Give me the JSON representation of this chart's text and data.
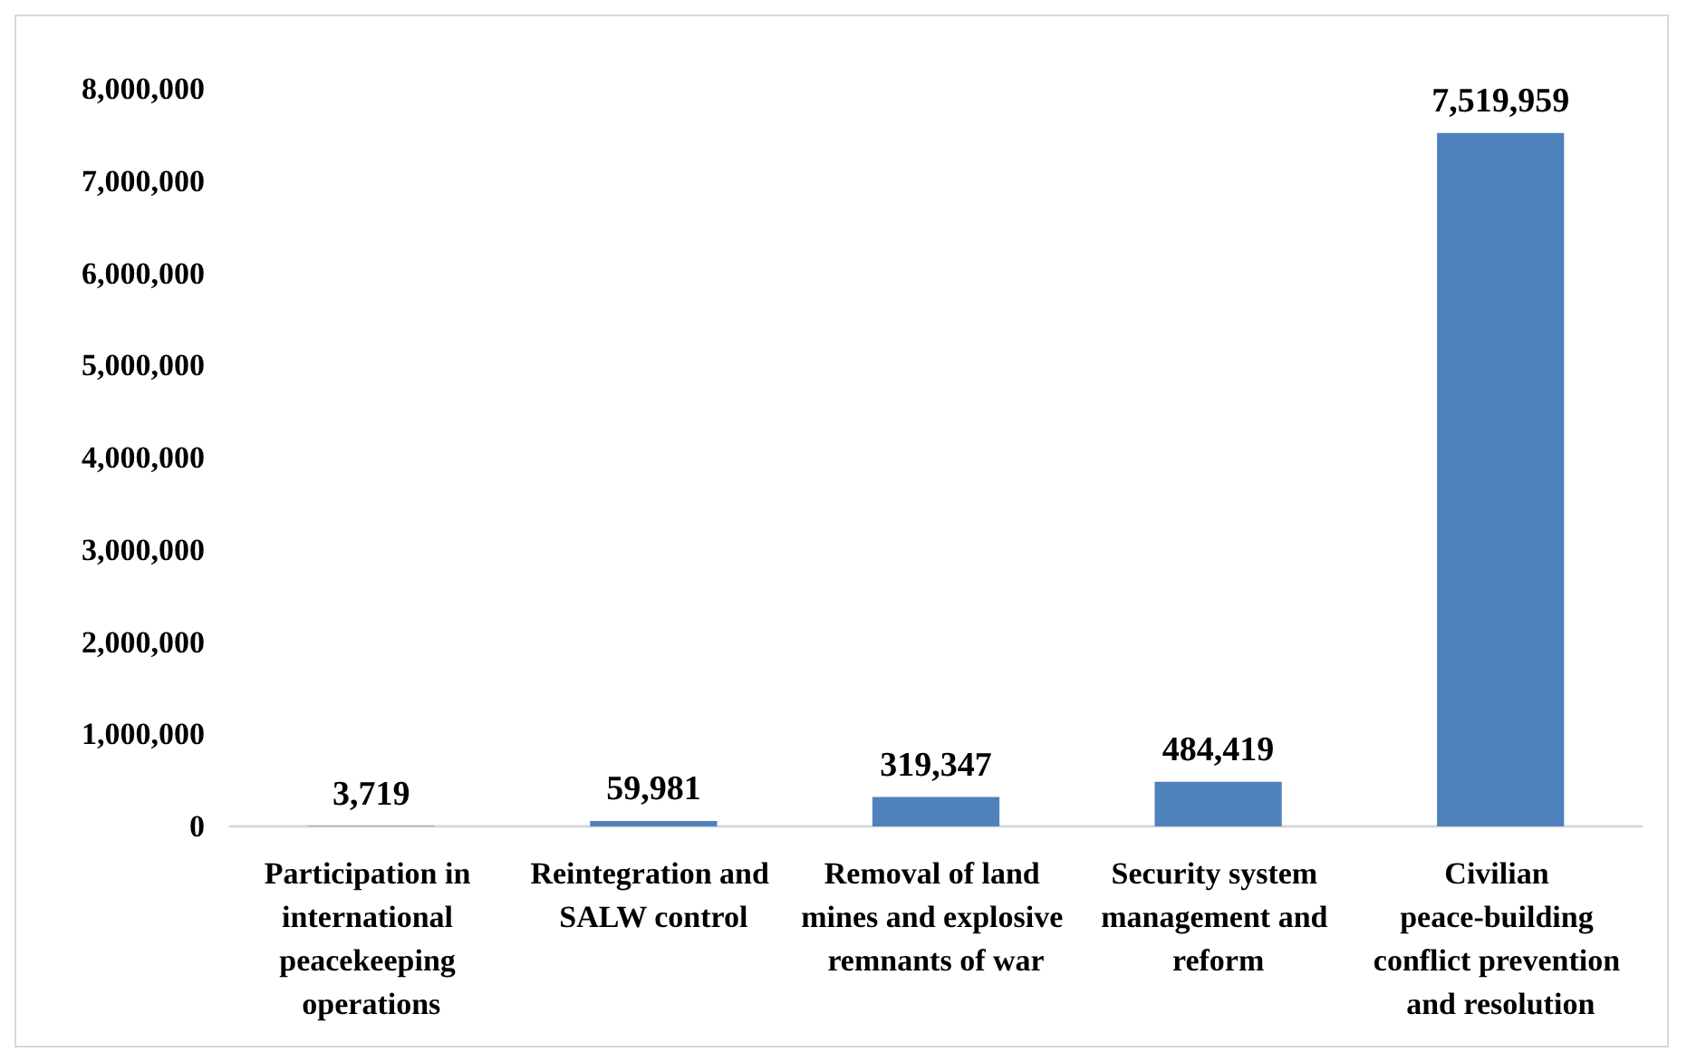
{
  "chart_data": {
    "type": "bar",
    "categories": [
      "Participation in international peacekeeping operations",
      "Reintegration and SALW control",
      "Removal of land mines and explosive remnants of war",
      "Security system management and reform",
      "Civilian peace-building conflict prevention and resolution"
    ],
    "values": [
      3719,
      59981,
      319347,
      484419,
      7519959
    ],
    "color": "#4f81bd",
    "ylim": [
      0,
      8000000
    ],
    "yticks": [
      {
        "value": 0,
        "label": "0"
      },
      {
        "value": 1000000,
        "label": "1,000,000"
      },
      {
        "value": 2000000,
        "label": "2,000,000"
      },
      {
        "value": 3000000,
        "label": "3,000,000"
      },
      {
        "value": 4000000,
        "label": "4,000,000"
      },
      {
        "value": 5000000,
        "label": "5,000,000"
      },
      {
        "value": 6000000,
        "label": "6,000,000"
      },
      {
        "value": 7000000,
        "label": "7,000,000"
      },
      {
        "value": 8000000,
        "label": "8,000,000"
      }
    ],
    "value_labels": [
      "3,719",
      "59,981",
      "319,347",
      "484,419",
      "7,519,959"
    ],
    "grid": false
  }
}
